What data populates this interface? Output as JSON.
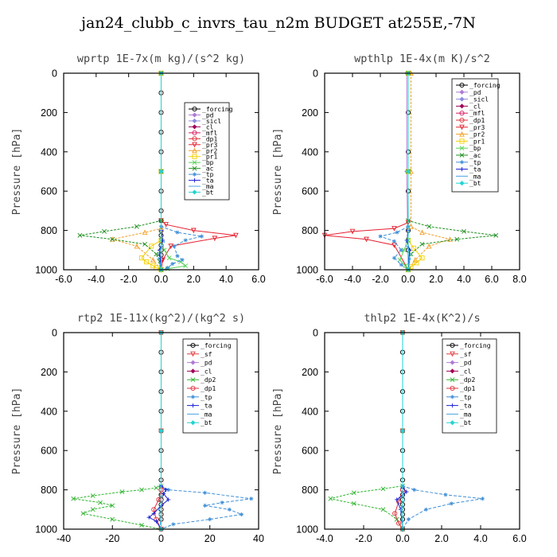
{
  "figure_title": "jan24_clubb_c_invrs_tau_n2m  BUDGET at255E,-7N",
  "colors": {
    "_forcing": "#000000",
    "_pd": "#b07ad6",
    "_sicl": "#8a8ae0",
    "_cl": "#a0005a",
    "_mfl": "#d81b60",
    "_dp1": "#e0303a",
    "_dp2": "#2fb52f",
    "_pr3": "#e5202f",
    "_pr2": "#f2a02a",
    "_pr1": "#f3d000",
    "_bp": "#52d152",
    "_ac": "#1f8f1f",
    "_tp": "#3f8fd6",
    "_ta": "#1a22d6",
    "_ma": "#4aa3e0",
    "_bt": "#22d3d3",
    "_sf": "#e33a3a"
  },
  "chart_data": [
    {
      "type": "line",
      "title": "wprtp  1E-7x(m kg)/(s^2 kg)",
      "ylabel": "Pressure [hPa]",
      "xlim": [
        -6,
        6
      ],
      "ylim": [
        1000,
        0
      ],
      "xticks": [
        "-6.0",
        "-4.0",
        "-2.0",
        "0.0",
        "2.0",
        "4.0",
        "6.0"
      ],
      "yticks": [
        "0",
        "200",
        "400",
        "600",
        "800",
        "1000"
      ],
      "legend_position": "top-right",
      "series": [
        {
          "name": "_forcing",
          "x": [
            0,
            0,
            0,
            0,
            0,
            0,
            0,
            0,
            0,
            0,
            0,
            0,
            0,
            0,
            0,
            0,
            0
          ],
          "y": [
            0,
            100,
            200,
            300,
            400,
            500,
            600,
            700,
            750,
            800,
            825,
            850,
            875,
            900,
            925,
            950,
            1000
          ]
        },
        {
          "name": "_pd",
          "x": [
            0,
            0,
            0
          ],
          "y": [
            0,
            500,
            1000
          ]
        },
        {
          "name": "_sicl",
          "x": [
            0,
            0,
            0
          ],
          "y": [
            0,
            500,
            1000
          ]
        },
        {
          "name": "_cl",
          "x": [
            0,
            0,
            0
          ],
          "y": [
            0,
            500,
            1000
          ]
        },
        {
          "name": "_mfl",
          "x": [
            0,
            0,
            0
          ],
          "y": [
            0,
            500,
            1000
          ]
        },
        {
          "name": "_dp1",
          "x": [
            0,
            0,
            0
          ],
          "y": [
            0,
            500,
            1000
          ]
        },
        {
          "name": "_pr3",
          "x": [
            0,
            0,
            0,
            0.3,
            2.0,
            4.6,
            3.3,
            0.6,
            0.1,
            0
          ],
          "y": [
            0,
            500,
            750,
            770,
            800,
            825,
            840,
            880,
            950,
            1000
          ]
        },
        {
          "name": "_pr2",
          "x": [
            0,
            0,
            0,
            -1.0,
            -3.0,
            -1.5,
            -0.5,
            0
          ],
          "y": [
            0,
            500,
            790,
            810,
            845,
            880,
            950,
            1000
          ]
        },
        {
          "name": "_pr1",
          "x": [
            0,
            0,
            0,
            -0.6,
            -1.2,
            -0.9,
            -0.5,
            -0.3,
            0
          ],
          "y": [
            0,
            500,
            850,
            880,
            940,
            960,
            980,
            990,
            1000
          ]
        },
        {
          "name": "_bp",
          "x": [
            0,
            0,
            0,
            0.2,
            0.5,
            1.2,
            1.5,
            0.4,
            0
          ],
          "y": [
            0,
            500,
            850,
            900,
            940,
            960,
            980,
            995,
            1000
          ]
        },
        {
          "name": "_ac",
          "x": [
            0,
            0,
            0,
            -1.5,
            -3.5,
            -5.0,
            -3.0,
            -1.0,
            -0.3,
            0
          ],
          "y": [
            0,
            500,
            750,
            780,
            805,
            825,
            845,
            870,
            920,
            1000
          ]
        },
        {
          "name": "_tp",
          "x": [
            0,
            0,
            0,
            1.0,
            2.5,
            1.5,
            0.8,
            1.0,
            1.3,
            0.7,
            0.4,
            0
          ],
          "y": [
            0,
            500,
            780,
            810,
            830,
            850,
            880,
            930,
            950,
            970,
            990,
            1000
          ]
        },
        {
          "name": "_ta",
          "x": [
            0,
            0,
            0,
            0.1,
            -0.1,
            0
          ],
          "y": [
            0,
            500,
            800,
            850,
            900,
            1000
          ]
        },
        {
          "name": "_ma",
          "x": [
            0,
            0,
            0,
            0.2,
            -0.2,
            0
          ],
          "y": [
            0,
            500,
            820,
            860,
            920,
            1000
          ]
        },
        {
          "name": "_bt",
          "x": [
            0,
            0,
            0
          ],
          "y": [
            0,
            500,
            1000
          ]
        }
      ]
    },
    {
      "type": "line",
      "title": "wpthlp  1E-4x(m K)/s^2",
      "ylabel": "Pressure [hPa]",
      "xlim": [
        -6,
        8
      ],
      "ylim": [
        1000,
        0
      ],
      "xticks": [
        "-6.0",
        "-4.0",
        "-2.0",
        "0.0",
        "2.0",
        "4.0",
        "6.0",
        "8.0"
      ],
      "yticks": [
        "0",
        "200",
        "400",
        "600",
        "800",
        "1000"
      ],
      "legend_position": "top-right",
      "series": [
        {
          "name": "_forcing",
          "x": [
            0,
            0,
            0,
            0,
            0,
            0,
            0
          ],
          "y": [
            0,
            200,
            400,
            600,
            800,
            900,
            1000
          ]
        },
        {
          "name": "_pd",
          "x": [
            -0.1,
            -0.1,
            0
          ],
          "y": [
            0,
            500,
            1000
          ]
        },
        {
          "name": "_sicl",
          "x": [
            0,
            0,
            0
          ],
          "y": [
            0,
            500,
            1000
          ]
        },
        {
          "name": "_cl",
          "x": [
            0,
            0,
            0
          ],
          "y": [
            0,
            500,
            1000
          ]
        },
        {
          "name": "_mfl",
          "x": [
            0,
            0,
            0
          ],
          "y": [
            0,
            500,
            1000
          ]
        },
        {
          "name": "_dp1",
          "x": [
            0,
            0,
            0
          ],
          "y": [
            0,
            500,
            1000
          ]
        },
        {
          "name": "_pr3",
          "x": [
            0,
            0,
            0,
            -1.0,
            -4.0,
            -6.0,
            -3.0,
            -1.0,
            0
          ],
          "y": [
            0,
            500,
            760,
            790,
            805,
            825,
            845,
            875,
            1000
          ]
        },
        {
          "name": "_pr2",
          "x": [
            0.2,
            0.2,
            0.2,
            1.0,
            3.0,
            1.5,
            0.5,
            0
          ],
          "y": [
            0,
            500,
            780,
            810,
            845,
            880,
            950,
            1000
          ]
        },
        {
          "name": "_pr1",
          "x": [
            0,
            0,
            0,
            0.4,
            1.0,
            0.6,
            0.2,
            0
          ],
          "y": [
            0,
            500,
            850,
            890,
            940,
            965,
            985,
            1000
          ]
        },
        {
          "name": "_bp",
          "x": [
            0,
            0,
            0,
            -0.3,
            -0.6,
            -0.2,
            0
          ],
          "y": [
            0,
            500,
            850,
            900,
            950,
            980,
            1000
          ]
        },
        {
          "name": "_ac",
          "x": [
            0,
            0,
            0,
            1.5,
            4.0,
            6.3,
            3.5,
            1.0,
            0.2,
            0
          ],
          "y": [
            0,
            500,
            750,
            780,
            805,
            825,
            845,
            870,
            920,
            1000
          ]
        },
        {
          "name": "_tp",
          "x": [
            0,
            0,
            0,
            -0.8,
            -2.0,
            -1.0,
            -0.5,
            -1.0,
            -0.5,
            0
          ],
          "y": [
            0,
            500,
            780,
            810,
            830,
            855,
            900,
            940,
            975,
            1000
          ]
        },
        {
          "name": "_ta",
          "x": [
            0,
            0,
            0,
            -0.1,
            0.1,
            0
          ],
          "y": [
            0,
            500,
            800,
            850,
            900,
            1000
          ]
        },
        {
          "name": "_ma",
          "x": [
            0,
            0,
            0,
            -0.2,
            0.2,
            0
          ],
          "y": [
            0,
            500,
            820,
            870,
            920,
            1000
          ]
        },
        {
          "name": "_bt",
          "x": [
            0,
            0,
            0
          ],
          "y": [
            0,
            500,
            1000
          ]
        }
      ]
    },
    {
      "type": "line",
      "title": "rtp2  1E-11x(kg^2)/(kg^2 s)",
      "ylabel": "Pressure [hPa]",
      "xlim": [
        -40,
        40
      ],
      "ylim": [
        1000,
        0
      ],
      "xticks": [
        "-40",
        "-20",
        "0",
        "20",
        "40"
      ],
      "yticks": [
        "0",
        "200",
        "400",
        "600",
        "800",
        "1000"
      ],
      "legend_position": "top-right",
      "series": [
        {
          "name": "_forcing",
          "x": [
            0,
            0,
            0,
            0,
            0,
            0,
            0,
            0,
            0,
            0,
            0,
            0,
            0,
            0,
            0,
            0,
            0
          ],
          "y": [
            0,
            100,
            200,
            300,
            400,
            500,
            600,
            700,
            750,
            800,
            825,
            850,
            875,
            900,
            925,
            950,
            1000
          ]
        },
        {
          "name": "_sf",
          "x": [
            0,
            0,
            0
          ],
          "y": [
            0,
            500,
            1000
          ]
        },
        {
          "name": "_pd",
          "x": [
            0,
            0,
            0
          ],
          "y": [
            0,
            500,
            1000
          ]
        },
        {
          "name": "_cl",
          "x": [
            0,
            0,
            0
          ],
          "y": [
            0,
            500,
            1000
          ]
        },
        {
          "name": "_dp2",
          "x": [
            0,
            0,
            0,
            -2,
            -8,
            -16,
            -28,
            -36,
            -25,
            -20,
            -28,
            -32,
            -20,
            -8,
            0
          ],
          "y": [
            0,
            500,
            780,
            790,
            800,
            810,
            830,
            845,
            865,
            880,
            900,
            920,
            950,
            980,
            1000
          ]
        },
        {
          "name": "_dp1",
          "x": [
            0,
            0,
            0,
            -1,
            -3,
            -2,
            0
          ],
          "y": [
            0,
            500,
            800,
            850,
            900,
            950,
            1000
          ]
        },
        {
          "name": "_tp",
          "x": [
            0,
            0,
            0,
            3,
            18,
            37,
            25,
            18,
            28,
            33,
            20,
            5,
            0
          ],
          "y": [
            0,
            500,
            780,
            800,
            815,
            845,
            865,
            880,
            900,
            925,
            950,
            975,
            1000
          ]
        },
        {
          "name": "_ta",
          "x": [
            0,
            0,
            0,
            2,
            1,
            3,
            0,
            -3,
            -5,
            -2,
            0
          ],
          "y": [
            0,
            500,
            780,
            800,
            820,
            850,
            880,
            920,
            940,
            960,
            1000
          ]
        },
        {
          "name": "_ma",
          "x": [
            0,
            0,
            0,
            1,
            -1,
            0
          ],
          "y": [
            0,
            500,
            800,
            850,
            900,
            1000
          ]
        },
        {
          "name": "_bt",
          "x": [
            0,
            0,
            0
          ],
          "y": [
            0,
            500,
            1000
          ]
        }
      ]
    },
    {
      "type": "line",
      "title": "thlp2  1E-4x(K^2)/s",
      "ylabel": "Pressure [hPa]",
      "xlim": [
        -4,
        6
      ],
      "ylim": [
        1000,
        0
      ],
      "xticks": [
        "-4.0",
        "-2.0",
        "0.0",
        "2.0",
        "4.0",
        "6.0"
      ],
      "yticks": [
        "0",
        "200",
        "400",
        "600",
        "800",
        "1000"
      ],
      "legend_position": "top-right",
      "series": [
        {
          "name": "_forcing",
          "x": [
            0,
            0,
            0,
            0,
            0,
            0,
            0,
            0,
            0,
            0,
            0,
            0,
            0,
            0,
            0,
            0,
            0
          ],
          "y": [
            0,
            100,
            200,
            300,
            400,
            500,
            600,
            700,
            750,
            800,
            825,
            850,
            875,
            900,
            925,
            950,
            1000
          ]
        },
        {
          "name": "_sf",
          "x": [
            0,
            0,
            0
          ],
          "y": [
            0,
            500,
            1000
          ]
        },
        {
          "name": "_pd",
          "x": [
            0,
            0,
            0
          ],
          "y": [
            0,
            500,
            1000
          ]
        },
        {
          "name": "_cl",
          "x": [
            0,
            0,
            0
          ],
          "y": [
            0,
            500,
            1000
          ]
        },
        {
          "name": "_dp2",
          "x": [
            0,
            0,
            0,
            -1.0,
            -2.5,
            -3.7,
            -2.5,
            -1.0,
            -0.3,
            0
          ],
          "y": [
            0,
            500,
            780,
            795,
            815,
            845,
            870,
            900,
            950,
            1000
          ]
        },
        {
          "name": "_dp1",
          "x": [
            0,
            0,
            0,
            -0.2,
            -0.4,
            -0.2,
            0
          ],
          "y": [
            0,
            500,
            800,
            860,
            920,
            970,
            1000
          ]
        },
        {
          "name": "_tp",
          "x": [
            0,
            0,
            0,
            0.6,
            2.2,
            4.1,
            2.5,
            1.2,
            0.3,
            0
          ],
          "y": [
            0,
            500,
            780,
            800,
            825,
            845,
            870,
            900,
            950,
            1000
          ]
        },
        {
          "name": "_ta",
          "x": [
            0,
            0,
            0,
            0.2,
            -0.3,
            -0.1,
            0
          ],
          "y": [
            0,
            500,
            790,
            810,
            850,
            900,
            1000
          ]
        },
        {
          "name": "_ma",
          "x": [
            0,
            0,
            0,
            0.1,
            -0.1,
            0
          ],
          "y": [
            0,
            500,
            800,
            850,
            900,
            1000
          ]
        },
        {
          "name": "_bt",
          "x": [
            0,
            0,
            0
          ],
          "y": [
            0,
            500,
            1000
          ]
        }
      ]
    }
  ]
}
